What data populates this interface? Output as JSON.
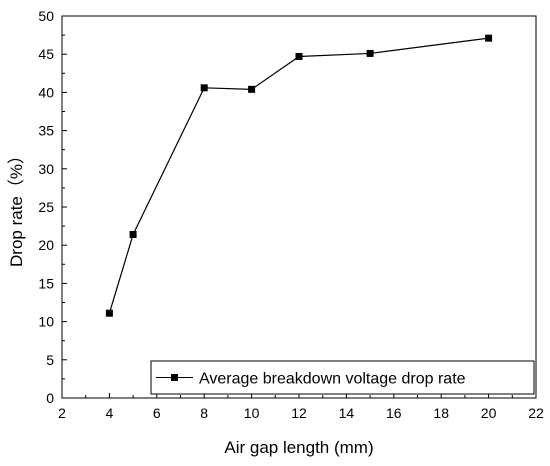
{
  "chart_data": {
    "type": "line",
    "xlabel": "Air gap length (mm)",
    "ylabel": "Drop rate（%）",
    "xlim": [
      2,
      22
    ],
    "ylim": [
      0,
      50
    ],
    "xticks": [
      2,
      4,
      6,
      8,
      10,
      12,
      14,
      16,
      18,
      20,
      22
    ],
    "yticks": [
      0,
      5,
      10,
      15,
      20,
      25,
      30,
      35,
      40,
      45,
      50
    ],
    "grid": false,
    "legend_position": "bottom-right",
    "series": [
      {
        "name": "Average breakdown voltage drop rate",
        "marker": "square",
        "color": "#000000",
        "x": [
          4,
          5,
          8,
          10,
          12,
          15,
          20
        ],
        "y": [
          11.1,
          21.4,
          40.6,
          40.4,
          44.7,
          45.1,
          47.1
        ]
      }
    ]
  }
}
